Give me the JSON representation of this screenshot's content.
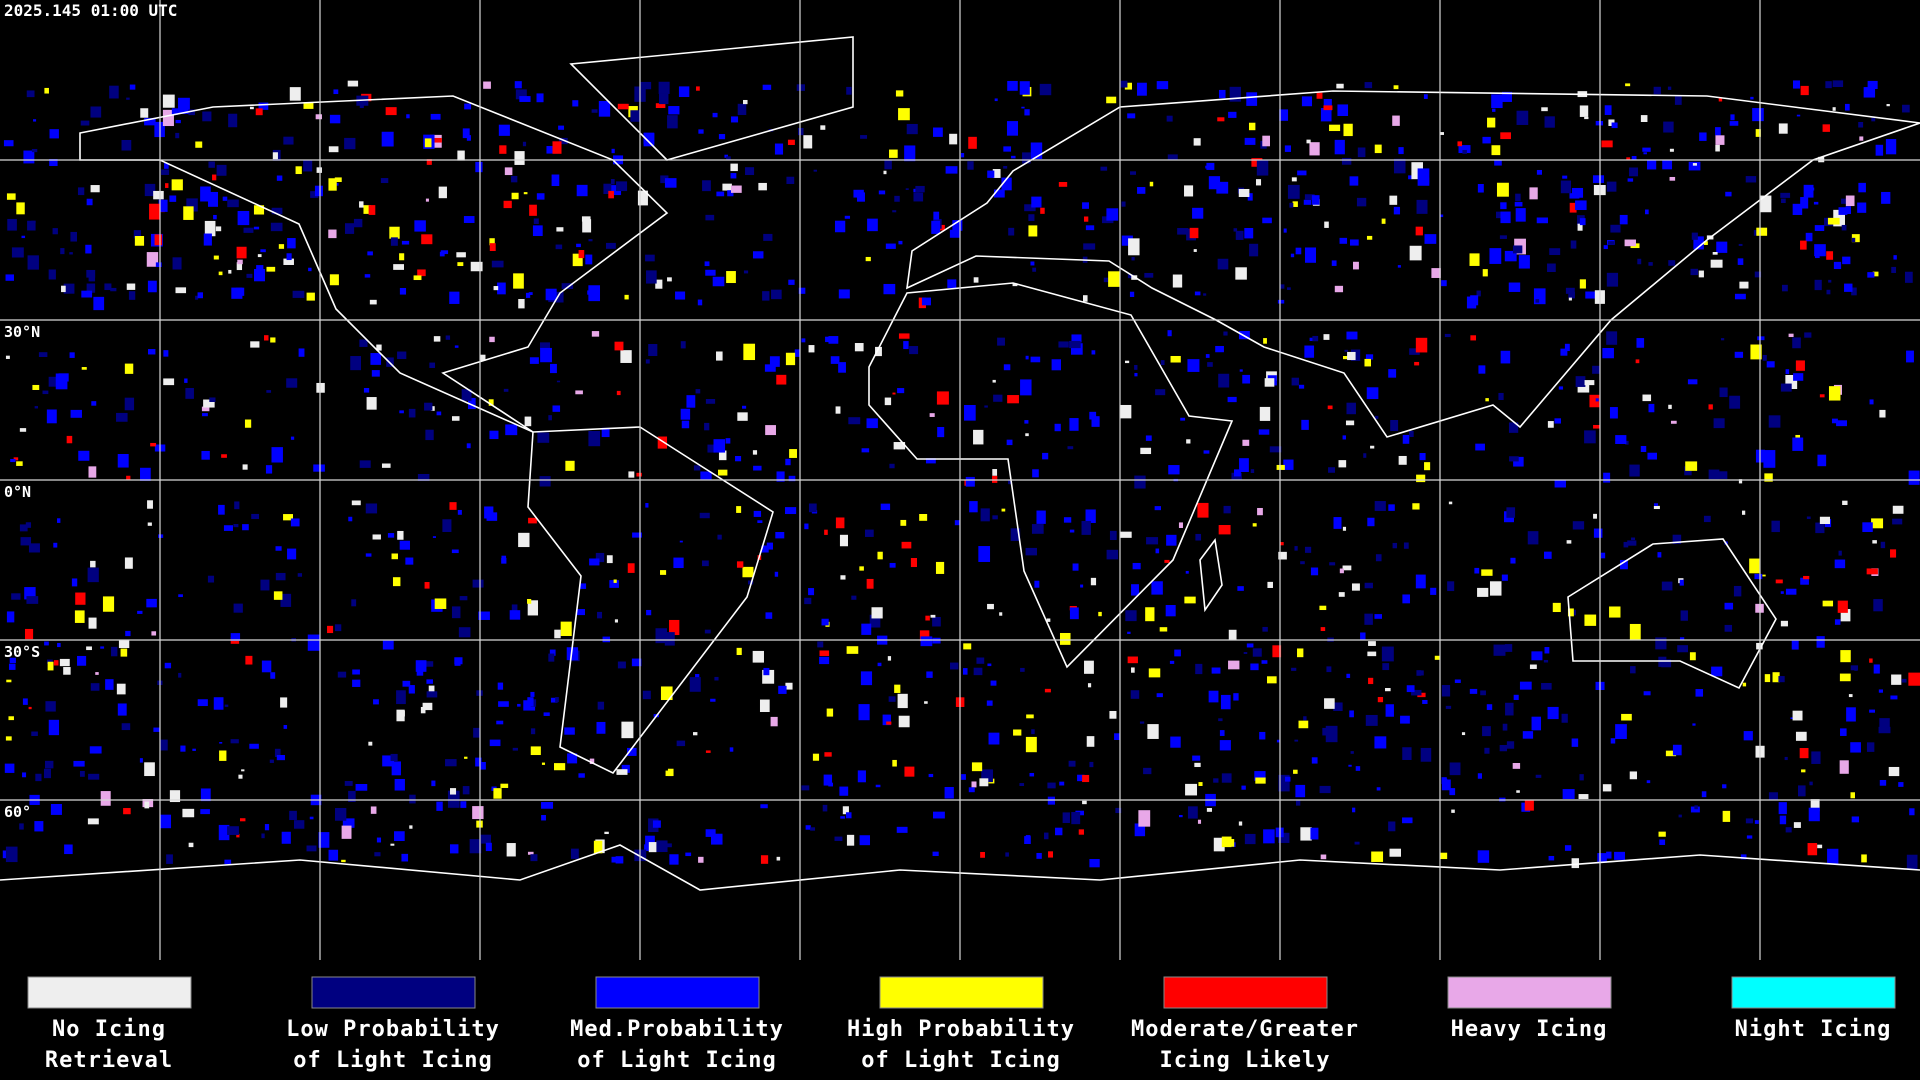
{
  "timestamp": "2025.145 01:00 UTC",
  "latitude_labels": [
    "30°N",
    "0°N",
    "30°S",
    "60°"
  ],
  "legend": [
    {
      "lines": [
        "No Icing",
        "Retrieval"
      ],
      "color": "#eeeeee"
    },
    {
      "lines": [
        "Low Probability",
        "of Light Icing"
      ],
      "color": "#000080"
    },
    {
      "lines": [
        "Med.Probability",
        "of Light Icing"
      ],
      "color": "#0000ff"
    },
    {
      "lines": [
        "High Probability",
        "of Light Icing"
      ],
      "color": "#ffff00"
    },
    {
      "lines": [
        "Moderate/Greater",
        "Icing Likely"
      ],
      "color": "#ff0000"
    },
    {
      "lines": [
        "Heavy Icing"
      ],
      "color": "#e8a8e8"
    },
    {
      "lines": [
        "Night Icing"
      ],
      "color": "#00ffff"
    }
  ]
}
